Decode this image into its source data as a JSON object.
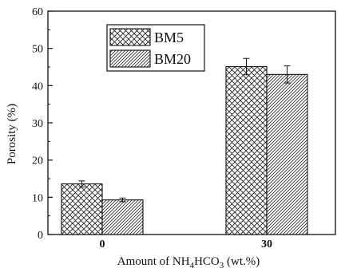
{
  "chart_data": {
    "type": "bar",
    "categories": [
      "0",
      "30"
    ],
    "series": [
      {
        "name": "BM5",
        "values": [
          13.6,
          45.1
        ],
        "errors": [
          0.8,
          2.2
        ],
        "pattern": "crosshatch"
      },
      {
        "name": "BM20",
        "values": [
          9.3,
          43.0
        ],
        "errors": [
          0.5,
          2.3
        ],
        "pattern": "diagonal-hatch"
      }
    ],
    "ylabel": "Porosity (%)",
    "xlabel": {
      "prefix": "Amount of NH",
      "sub1": "4",
      "mid": "HCO",
      "sub2": "3",
      "suffix": " (wt.%)"
    },
    "ylim": [
      0,
      60
    ],
    "yticks": [
      "0",
      "10",
      "20",
      "30",
      "40",
      "50",
      "60"
    ],
    "grid": false,
    "legend": "top-left",
    "colors": {
      "line": "#111111",
      "fill": "#ffffff"
    }
  }
}
